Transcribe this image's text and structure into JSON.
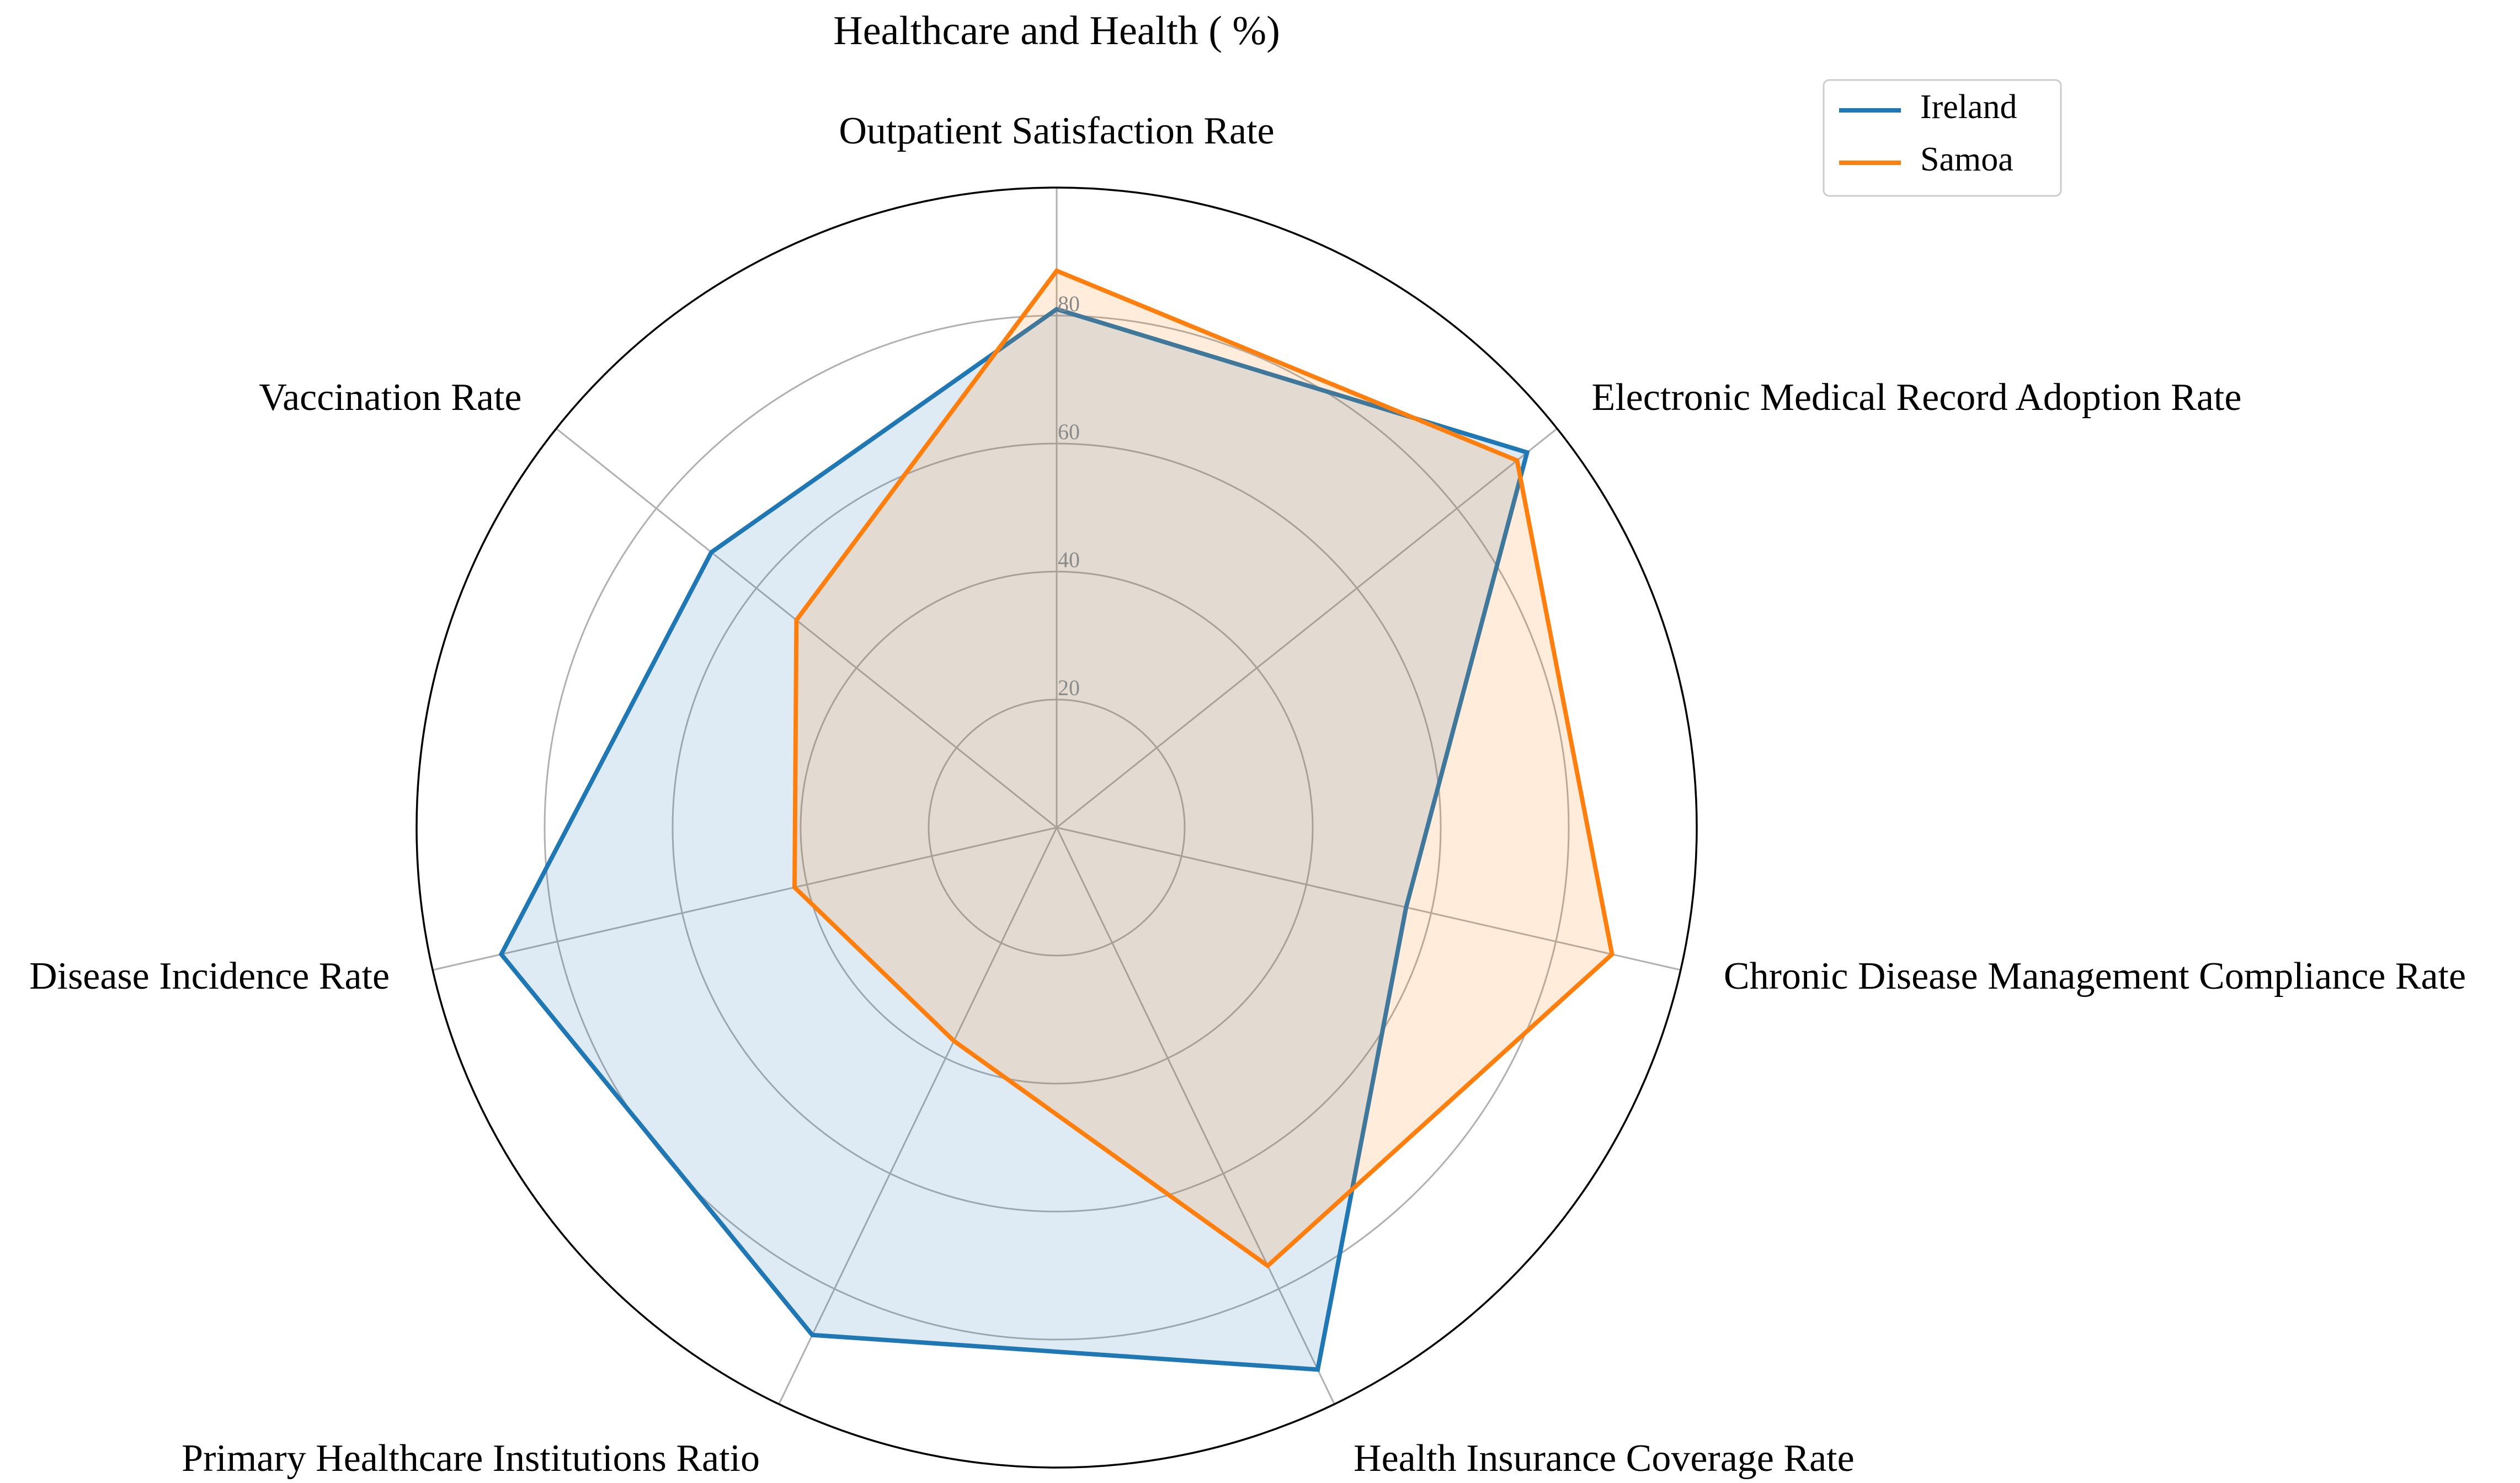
{
  "chart_data": {
    "type": "radar",
    "title": "Healthcare and Health ( %)",
    "axes": [
      "Outpatient Satisfaction Rate",
      "Electronic Medical Record Adoption Rate",
      "Chronic Disease Management Compliance Rate",
      "Health Insurance Coverage Rate",
      "Primary Healthcare Institutions Ratio",
      "Disease Incidence Rate",
      "Vaccination Rate"
    ],
    "radial_ticks": [
      "20",
      "40",
      "60",
      "80"
    ],
    "radial_tick_values": [
      20,
      40,
      60,
      80
    ],
    "rlim": [
      0,
      100
    ],
    "grid": true,
    "legend_position": "top-right",
    "series": [
      {
        "name": "Ireland",
        "color": "#1f77b4",
        "values": [
          81,
          94,
          56,
          94,
          88,
          89,
          69
        ]
      },
      {
        "name": "Samoa",
        "color": "#ff7f0e",
        "values": [
          87,
          92,
          89,
          76,
          37,
          42,
          52
        ]
      }
    ]
  }
}
